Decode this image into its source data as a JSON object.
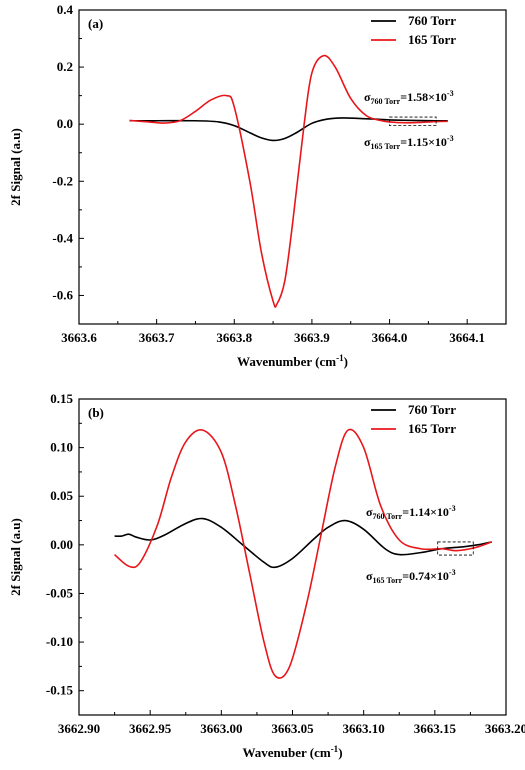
{
  "chart_data": [
    {
      "type": "line",
      "panel_label": "(a)",
      "xlabel": "Wavenumber (cm",
      "xlabel_sup": "-1",
      "xlabel_end": ")",
      "ylabel": "2f Signal (a.u)",
      "xlim": [
        3663.6,
        3664.15
      ],
      "ylim": [
        -0.7,
        0.4
      ],
      "xticks": [
        "3663.6",
        "3663.7",
        "3663.8",
        "3663.9",
        "3664.0",
        "3664.1"
      ],
      "xtick_values": [
        3663.6,
        3663.7,
        3663.8,
        3663.9,
        3664.0,
        3664.1
      ],
      "yticks": [
        "0.4",
        "0.2",
        "0.0",
        "-0.2",
        "-0.4",
        "-0.6"
      ],
      "ytick_values": [
        0.4,
        0.2,
        0.0,
        -0.2,
        -0.4,
        -0.6
      ],
      "legend_position": "top-right",
      "annotations": {
        "sigma760": {
          "sym": "σ",
          "sub": "760 Torr",
          "val": "=1.58×10",
          "sup": "-3"
        },
        "sigma165": {
          "sym": "σ",
          "sub": "165 Torr",
          "val": "=1.15×10",
          "sup": "-3"
        }
      },
      "noise_box": {
        "x": [
          3664.0,
          3664.06
        ],
        "y": [
          -0.005,
          0.025
        ]
      },
      "series": [
        {
          "name": "760 Torr",
          "color": "#000000",
          "x": [
            3663.665,
            3663.7,
            3663.75,
            3663.78,
            3663.8,
            3663.82,
            3663.835,
            3663.85,
            3663.865,
            3663.88,
            3663.9,
            3663.92,
            3663.94,
            3663.96,
            3663.98,
            3664.0,
            3664.03,
            3664.06,
            3664.075
          ],
          "y": [
            0.012,
            0.012,
            0.012,
            0.008,
            -0.005,
            -0.03,
            -0.048,
            -0.057,
            -0.05,
            -0.03,
            0.003,
            0.018,
            0.022,
            0.02,
            0.018,
            0.015,
            0.013,
            0.012,
            0.012
          ]
        },
        {
          "name": "165 Torr",
          "color": "#e8161b",
          "x": [
            3663.665,
            3663.69,
            3663.71,
            3663.73,
            3663.75,
            3663.77,
            3663.79,
            3663.8,
            3663.82,
            3663.835,
            3663.85,
            3663.855,
            3663.865,
            3663.875,
            3663.89,
            3663.9,
            3663.915,
            3663.93,
            3663.95,
            3663.97,
            3663.99,
            3664.0,
            3664.02,
            3664.04,
            3664.06,
            3664.075
          ],
          "y": [
            0.013,
            0.008,
            0.004,
            0.012,
            0.045,
            0.085,
            0.1,
            0.06,
            -0.2,
            -0.45,
            -0.62,
            -0.63,
            -0.55,
            -0.35,
            0.0,
            0.18,
            0.24,
            0.2,
            0.09,
            0.03,
            0.012,
            0.008,
            0.005,
            0.006,
            0.009,
            0.01
          ]
        }
      ]
    },
    {
      "type": "line",
      "panel_label": "(b)",
      "xlabel": "Wavenuber (cm",
      "xlabel_sup": "-1",
      "xlabel_end": ")",
      "ylabel": "2f Signal (a.u)",
      "xlim": [
        3662.9,
        3663.2
      ],
      "ylim": [
        -0.175,
        0.15
      ],
      "xticks": [
        "3662.90",
        "3662.95",
        "3663.00",
        "3663.05",
        "3663.10",
        "3663.15",
        "3663.20"
      ],
      "xtick_values": [
        3662.9,
        3662.95,
        3663.0,
        3663.05,
        3663.1,
        3663.15,
        3663.2
      ],
      "yticks": [
        "0.15",
        "0.10",
        "0.05",
        "0.00",
        "-0.05",
        "-0.10",
        "-0.15"
      ],
      "ytick_values": [
        0.15,
        0.1,
        0.05,
        0.0,
        -0.05,
        -0.1,
        -0.15
      ],
      "legend_position": "top-right",
      "annotations": {
        "sigma760": {
          "sym": "σ",
          "sub": "760 Torr",
          "val": "=1.14×10",
          "sup": "-3"
        },
        "sigma165": {
          "sym": "σ",
          "sub": "165 Torr",
          "val": "=0.74×10",
          "sup": "-3"
        }
      },
      "noise_box": {
        "x": [
          3663.152,
          3663.177
        ],
        "y": [
          -0.0105,
          0.003
        ]
      },
      "series": [
        {
          "name": "760 Torr",
          "color": "#000000",
          "x": [
            3662.925,
            3662.93,
            3662.935,
            3662.94,
            3662.95,
            3662.96,
            3662.975,
            3662.987,
            3663.0,
            3663.015,
            3663.03,
            3663.038,
            3663.05,
            3663.065,
            3663.075,
            3663.087,
            3663.1,
            3663.115,
            3663.125,
            3663.14,
            3663.155,
            3663.17,
            3663.18,
            3663.19
          ],
          "y": [
            0.009,
            0.009,
            0.011,
            0.008,
            0.005,
            0.01,
            0.022,
            0.027,
            0.018,
            0.0,
            -0.018,
            -0.023,
            -0.014,
            0.006,
            0.018,
            0.025,
            0.016,
            -0.004,
            -0.01,
            -0.008,
            -0.004,
            -0.002,
            0.0,
            0.003
          ]
        },
        {
          "name": "165 Torr",
          "color": "#e8161b",
          "x": [
            3662.925,
            3662.935,
            3662.943,
            3662.955,
            3662.965,
            3662.975,
            3662.987,
            3663.0,
            3663.01,
            3663.02,
            3663.03,
            3663.038,
            3663.048,
            3663.06,
            3663.07,
            3663.08,
            3663.089,
            3663.1,
            3663.112,
            3663.125,
            3663.14,
            3663.155,
            3663.165,
            3663.178,
            3663.19
          ],
          "y": [
            -0.01,
            -0.022,
            -0.018,
            0.02,
            0.07,
            0.106,
            0.118,
            0.095,
            0.04,
            -0.03,
            -0.1,
            -0.135,
            -0.125,
            -0.06,
            0.01,
            0.08,
            0.118,
            0.1,
            0.04,
            0.005,
            -0.004,
            -0.004,
            -0.006,
            -0.003,
            0.003
          ]
        }
      ]
    }
  ]
}
